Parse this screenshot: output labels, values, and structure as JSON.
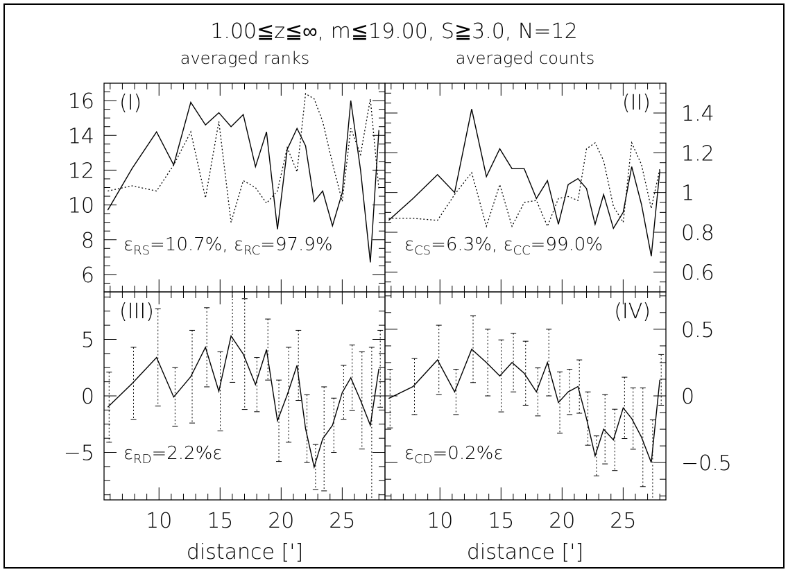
{
  "header": {
    "title": "1.00≦z≦∞, m≦19.00, S≧3.0, N=12",
    "subtitle_left": "averaged ranks",
    "subtitle_right": "averaged counts"
  },
  "xlabel": "distance [']",
  "chart_data": [
    {
      "id": "I",
      "panel_label": "(I)",
      "type": "line",
      "xlim": [
        5.5,
        28.5
      ],
      "ylim": [
        5,
        17
      ],
      "yticks": [
        6,
        8,
        10,
        12,
        14,
        16
      ],
      "annotation": {
        "eps": "ε",
        "sub1": "RS",
        "val1": "=10.7%, ",
        "sub2": "RC",
        "val2": "=97.9%"
      },
      "series": [
        {
          "style": "solid",
          "x": [
            5.8,
            7.8,
            9.8,
            11.2,
            12.6,
            13.8,
            14.9,
            15.9,
            16.9,
            17.9,
            18.8,
            19.7,
            20.5,
            21.3,
            22.0,
            22.7,
            23.4,
            24.2,
            25.0,
            25.7,
            26.5,
            27.3,
            28.0
          ],
          "y": [
            9.7,
            12.1,
            14.2,
            12.3,
            15.9,
            14.6,
            15.3,
            14.5,
            15.2,
            12.2,
            14.2,
            8.6,
            13.2,
            14.4,
            13.4,
            10.2,
            10.8,
            8.8,
            10.7,
            16.0,
            12.0,
            6.7,
            14.3
          ]
        },
        {
          "style": "dotted",
          "x": [
            5.8,
            7.8,
            9.8,
            11.2,
            12.6,
            13.8,
            14.9,
            15.9,
            16.9,
            17.9,
            18.8,
            19.7,
            20.5,
            21.3,
            22.0,
            22.7,
            23.4,
            24.2,
            25.0,
            25.7,
            26.5,
            27.3,
            28.0
          ],
          "y": [
            10.8,
            11.1,
            10.8,
            12.3,
            14.2,
            10.4,
            14.8,
            9.0,
            11.4,
            11.0,
            10.1,
            10.8,
            13.3,
            11.9,
            16.4,
            16.1,
            14.8,
            12.4,
            10.2,
            14.4,
            12.9,
            16.1,
            10.9
          ]
        }
      ]
    },
    {
      "id": "II",
      "panel_label": "(II)",
      "type": "line",
      "xlim": [
        5.5,
        28.5
      ],
      "ylim": [
        0.5,
        1.55
      ],
      "yticks": [
        0.6,
        0.8,
        1,
        1.2,
        1.4
      ],
      "annotation": {
        "eps": "ε",
        "sub1": "CS",
        "val1": "=6.3%, ",
        "sub2": "CC",
        "val2": "=99.0%"
      },
      "series": [
        {
          "style": "solid",
          "x": [
            5.8,
            7.8,
            9.8,
            11.2,
            12.6,
            13.8,
            14.9,
            15.9,
            16.9,
            17.9,
            18.8,
            19.7,
            20.5,
            21.3,
            22.0,
            22.7,
            23.4,
            24.2,
            25.0,
            25.7,
            26.5,
            27.3,
            28.0
          ],
          "y": [
            0.86,
            0.97,
            1.09,
            1.0,
            1.42,
            1.08,
            1.22,
            1.12,
            1.12,
            0.97,
            1.06,
            0.84,
            1.04,
            1.07,
            1.02,
            0.84,
            0.99,
            0.82,
            0.9,
            1.13,
            0.94,
            0.68,
            1.11
          ]
        },
        {
          "style": "dotted",
          "x": [
            5.8,
            7.8,
            9.8,
            11.2,
            12.6,
            13.8,
            14.9,
            15.9,
            16.9,
            17.9,
            18.8,
            19.7,
            20.5,
            21.3,
            22.0,
            22.7,
            23.4,
            24.2,
            25.0,
            25.7,
            26.5,
            27.3,
            28.0
          ],
          "y": [
            0.87,
            0.87,
            0.86,
            0.99,
            1.1,
            0.83,
            1.04,
            0.83,
            0.95,
            0.96,
            0.83,
            0.97,
            0.98,
            0.96,
            1.22,
            1.25,
            1.16,
            0.93,
            0.85,
            1.25,
            1.14,
            0.92,
            1.12
          ]
        }
      ]
    },
    {
      "id": "III",
      "panel_label": "(III)",
      "type": "line",
      "xlim": [
        5.5,
        28.5
      ],
      "ylim": [
        -9.2,
        9.2
      ],
      "yticks": [
        -5,
        0,
        5
      ],
      "annotation": {
        "eps": "ε",
        "sub1": "RD",
        "val1": "=2.2%",
        "sub2": "",
        "val2": ""
      },
      "series": [
        {
          "style": "solid-errorbars",
          "x": [
            5.8,
            7.8,
            9.8,
            11.2,
            12.6,
            13.8,
            14.9,
            15.9,
            16.9,
            17.9,
            18.8,
            19.7,
            20.5,
            21.3,
            22.0,
            22.7,
            23.4,
            24.2,
            25.0,
            25.7,
            26.5,
            27.3,
            28.0
          ],
          "y": [
            -1.0,
            1.1,
            3.4,
            -0.1,
            1.7,
            4.3,
            0.4,
            5.3,
            3.7,
            1.0,
            4.1,
            -2.2,
            0.1,
            2.7,
            -2.9,
            -6.3,
            -3.8,
            -2.6,
            0.3,
            1.6,
            -0.4,
            -2.6,
            2.4
          ],
          "err": [
            3.1,
            3.2,
            4.3,
            2.6,
            4.1,
            3.5,
            3.5,
            4.1,
            4.9,
            2.4,
            2.7,
            3.6,
            4.2,
            3.1,
            3.0,
            2.0,
            4.6,
            2.4,
            2.4,
            2.9,
            4.3,
            6.9,
            3.4
          ]
        }
      ]
    },
    {
      "id": "IV",
      "panel_label": "(IV)",
      "type": "line",
      "xlim": [
        5.5,
        28.5
      ],
      "ylim": [
        -0.78,
        0.78
      ],
      "yticks": [
        -0.5,
        0,
        0.5
      ],
      "annotation": {
        "eps": "ε",
        "sub1": "CD",
        "val1": "=0.2%",
        "sub2": "",
        "val2": ""
      },
      "series": [
        {
          "style": "solid-errorbars",
          "x": [
            5.8,
            7.8,
            9.8,
            11.2,
            12.6,
            13.8,
            14.9,
            15.9,
            16.9,
            17.9,
            18.8,
            19.7,
            20.5,
            21.3,
            22.0,
            22.7,
            23.4,
            24.2,
            25.0,
            25.7,
            26.5,
            27.3,
            28.0
          ],
          "y": [
            -0.02,
            0.07,
            0.27,
            0.03,
            0.35,
            0.25,
            0.15,
            0.25,
            0.17,
            0.03,
            0.25,
            -0.05,
            0.03,
            0.07,
            -0.17,
            -0.45,
            -0.25,
            -0.33,
            -0.09,
            -0.17,
            -0.31,
            -0.5,
            0.12
          ],
          "err": [
            0.22,
            0.21,
            0.26,
            0.17,
            0.25,
            0.25,
            0.27,
            0.22,
            0.24,
            0.18,
            0.25,
            0.23,
            0.17,
            0.2,
            0.2,
            0.15,
            0.26,
            0.23,
            0.23,
            0.23,
            0.37,
            0.32,
            0.19
          ]
        }
      ]
    }
  ],
  "xticks": [
    10,
    15,
    20,
    25
  ],
  "style": {
    "ink": "#000000",
    "background": "#ffffff"
  }
}
